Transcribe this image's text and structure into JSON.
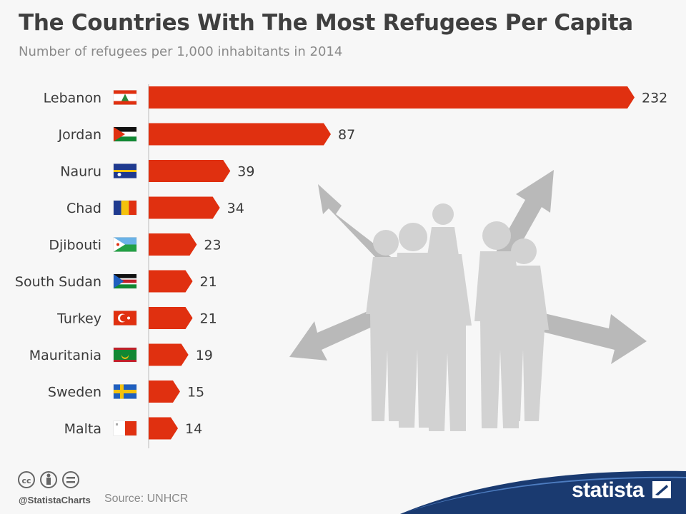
{
  "header": {
    "title": "The Countries With The Most Refugees Per Capita",
    "subtitle": "Number of refugees per 1,000 inhabitants in 2014"
  },
  "chart_data": {
    "type": "bar",
    "orientation": "horizontal",
    "title": "The Countries With The Most Refugees Per Capita",
    "subtitle": "Number of refugees per 1,000 inhabitants in 2014",
    "xlabel": "",
    "ylabel": "",
    "categories": [
      "Lebanon",
      "Jordan",
      "Nauru",
      "Chad",
      "Djibouti",
      "South Sudan",
      "Turkey",
      "Mauritania",
      "Sweden",
      "Malta"
    ],
    "values": [
      232,
      87,
      39,
      34,
      23,
      21,
      21,
      19,
      15,
      14
    ],
    "value_labels": [
      "232",
      "87",
      "39",
      "34",
      "23",
      "21",
      "21",
      "19",
      "15",
      "14"
    ],
    "xlim": [
      0,
      232
    ],
    "grid": false,
    "legend": "none",
    "bar_color": "#e03010"
  },
  "flags": [
    "lebanon-flag-icon",
    "jordan-flag-icon",
    "nauru-flag-icon",
    "chad-flag-icon",
    "djibouti-flag-icon",
    "south-sudan-flag-icon",
    "turkey-flag-icon",
    "mauritania-flag-icon",
    "sweden-flag-icon",
    "malta-flag-icon"
  ],
  "footer": {
    "handle": "@StatistaCharts",
    "source": "Source: UNHCR",
    "brand": "statista",
    "license_icons": [
      "cc-icon",
      "attribution-icon",
      "no-derivatives-icon"
    ]
  },
  "colors": {
    "bar": "#e03010",
    "background": "#f7f7f7",
    "footer_blue": "#1a3a70",
    "illustration": "#c8c8c8"
  }
}
